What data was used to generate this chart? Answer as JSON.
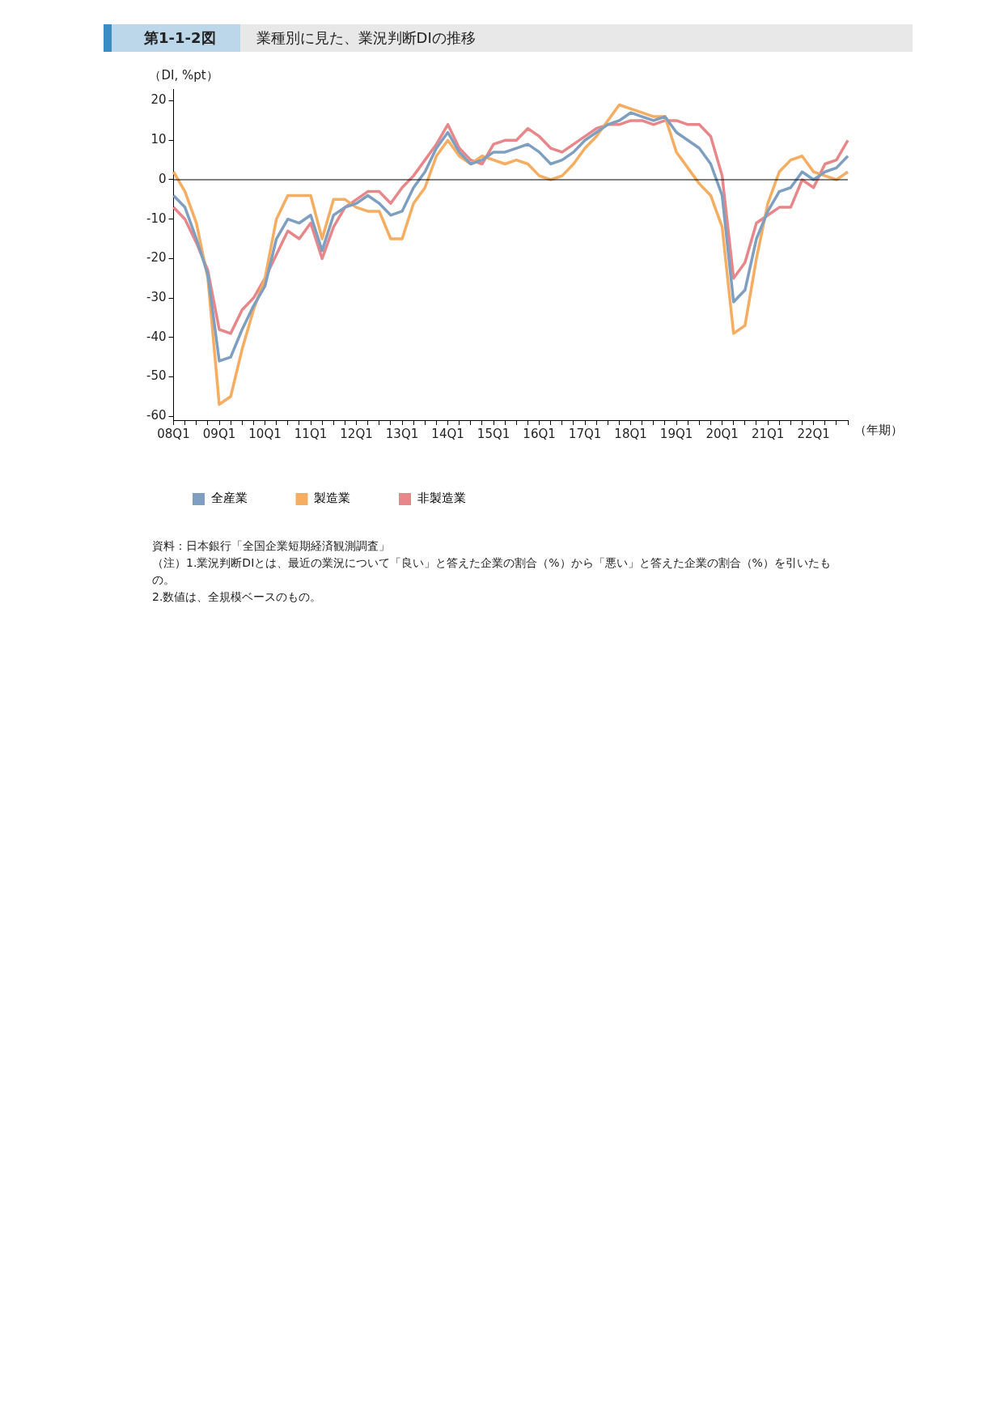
{
  "chart_data": {
    "type": "line",
    "title": "業種別に見た、業況判断DIの推移",
    "subtitle": "第1-1-2図",
    "xlabel": "（年期）",
    "ylabel": "（DI, %pt）",
    "categories": [
      "08Q1",
      null,
      null,
      null,
      "09Q1",
      null,
      null,
      null,
      "10Q1",
      null,
      null,
      null,
      "11Q1",
      null,
      null,
      null,
      "12Q1",
      null,
      null,
      null,
      "13Q1",
      null,
      null,
      null,
      "14Q1",
      null,
      null,
      null,
      "15Q1",
      null,
      null,
      null,
      "16Q1",
      null,
      null,
      null,
      "17Q1",
      null,
      null,
      null,
      "18Q1",
      null,
      null,
      null,
      "19Q1",
      null,
      null,
      null,
      "20Q1",
      null,
      null,
      null,
      "21Q1",
      null,
      null,
      null,
      "22Q1",
      null,
      null,
      null
    ],
    "series": [
      {
        "name": "全産業",
        "color": "#7f9fc0",
        "values": [
          -4,
          -7,
          -15,
          -24,
          -46,
          -45,
          -38,
          -32,
          -27,
          -15,
          -10,
          -11,
          -9,
          -18,
          -9,
          -7,
          -6,
          -4,
          -6,
          -9,
          -8,
          -2,
          2,
          8,
          12,
          7,
          4,
          5,
          7,
          7,
          8,
          9,
          7,
          4,
          5,
          7,
          10,
          12,
          14,
          15,
          17,
          16,
          15,
          16,
          12,
          10,
          8,
          4,
          -4,
          -31,
          -28,
          -15,
          -8,
          -3,
          -2,
          2,
          0,
          2,
          3,
          6
        ]
      },
      {
        "name": "製造業",
        "color": "#f5ad62",
        "values": [
          2,
          -3,
          -11,
          -25,
          -57,
          -55,
          -43,
          -33,
          -25,
          -10,
          -4,
          -4,
          -4,
          -15,
          -5,
          -5,
          -7,
          -8,
          -8,
          -15,
          -15,
          -6,
          -2,
          6,
          10,
          6,
          4,
          6,
          5,
          4,
          5,
          4,
          1,
          0,
          1,
          4,
          8,
          11,
          15,
          19,
          18,
          17,
          16,
          16,
          7,
          3,
          -1,
          -4,
          -12,
          -39,
          -37,
          -20,
          -6,
          2,
          5,
          6,
          2,
          1,
          0,
          2
        ]
      },
      {
        "name": "非製造業",
        "color": "#e8878a",
        "values": [
          -7,
          -10,
          -16,
          -23,
          -38,
          -39,
          -33,
          -30,
          -25,
          -19,
          -13,
          -15,
          -11,
          -20,
          -12,
          -7,
          -5,
          -3,
          -3,
          -6,
          -2,
          1,
          5,
          9,
          14,
          8,
          5,
          4,
          9,
          10,
          10,
          13,
          11,
          8,
          7,
          9,
          11,
          13,
          14,
          14,
          15,
          15,
          14,
          15,
          15,
          14,
          14,
          11,
          1,
          -25,
          -21,
          -11,
          -9,
          -7,
          -7,
          0,
          -2,
          4,
          5,
          10
        ]
      }
    ],
    "ylim": [
      -61,
      23
    ],
    "yticks": [
      -60,
      -50,
      -40,
      -30,
      -20,
      -10,
      0,
      10,
      20
    ],
    "ref_lines": [
      {
        "axis": "y",
        "value": 0,
        "color": "#000000"
      }
    ],
    "grid": false,
    "legend": "bottom",
    "marker": "none",
    "line_style": "solid",
    "annotations": [
      "資料：日本銀行「全国企業短期経済観測調査」",
      "（注）1.業況判断DIとは、最近の業況について「良い」と答えた企業の割合（%）から「悪い」と答えた企業の割合（%）を引いたもの。",
      "2.数値は、全規模ベースのもの。"
    ]
  }
}
